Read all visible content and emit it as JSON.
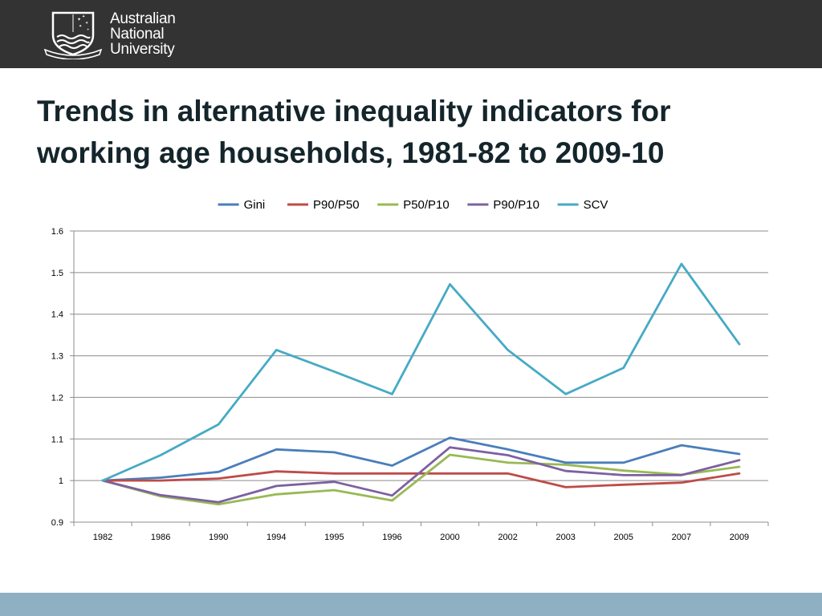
{
  "header": {
    "logo_lines": [
      "Australian",
      "National",
      "University"
    ],
    "crest_motto": "NATURAM PRIMUM COGNOSCERE RERUM"
  },
  "slide": {
    "title_line1": "Trends in alternative inequality indicators for",
    "title_line2": "working age households, 1981-82 to 2009-10"
  },
  "colors": {
    "header_bg": "#333333",
    "footer_band": "#8fb0c2",
    "title_text": "#14252b"
  },
  "chart_data": {
    "type": "line",
    "title": "",
    "xlabel": "",
    "ylabel": "",
    "categories": [
      "1982",
      "1986",
      "1990",
      "1994",
      "1995",
      "1996",
      "2000",
      "2002",
      "2003",
      "2005",
      "2007",
      "2009"
    ],
    "ylim": [
      0.9,
      1.6
    ],
    "yticks": [
      0.9,
      1.0,
      1.1,
      1.2,
      1.3,
      1.4,
      1.5,
      1.6
    ],
    "ytick_labels": [
      "0.9",
      "1",
      "1.1",
      "1.2",
      "1.3",
      "1.4",
      "1.5",
      "1.6"
    ],
    "grid": "horizontal",
    "legend_position": "top",
    "series": [
      {
        "name": "Gini",
        "color": "#4a7ebb",
        "values": [
          1.0,
          1.007,
          1.021,
          1.075,
          1.068,
          1.036,
          1.103,
          1.075,
          1.043,
          1.043,
          1.085,
          1.064
        ]
      },
      {
        "name": "P90/P50",
        "color": "#be4b48",
        "values": [
          1.0,
          1.0,
          1.005,
          1.022,
          1.017,
          1.017,
          1.017,
          1.017,
          0.984,
          0.99,
          0.995,
          1.017
        ]
      },
      {
        "name": "P50/P10",
        "color": "#98b954",
        "values": [
          1.0,
          0.962,
          0.943,
          0.967,
          0.977,
          0.952,
          1.062,
          1.043,
          1.038,
          1.024,
          1.014,
          1.033
        ]
      },
      {
        "name": "P90/P10",
        "color": "#7d60a0",
        "values": [
          1.0,
          0.965,
          0.948,
          0.987,
          0.997,
          0.964,
          1.08,
          1.061,
          1.023,
          1.013,
          1.013,
          1.049
        ]
      },
      {
        "name": "SCV",
        "color": "#46aac5",
        "values": [
          1.0,
          1.061,
          1.135,
          1.314,
          1.262,
          1.208,
          1.472,
          1.314,
          1.208,
          1.271,
          1.521,
          1.328
        ]
      }
    ]
  }
}
